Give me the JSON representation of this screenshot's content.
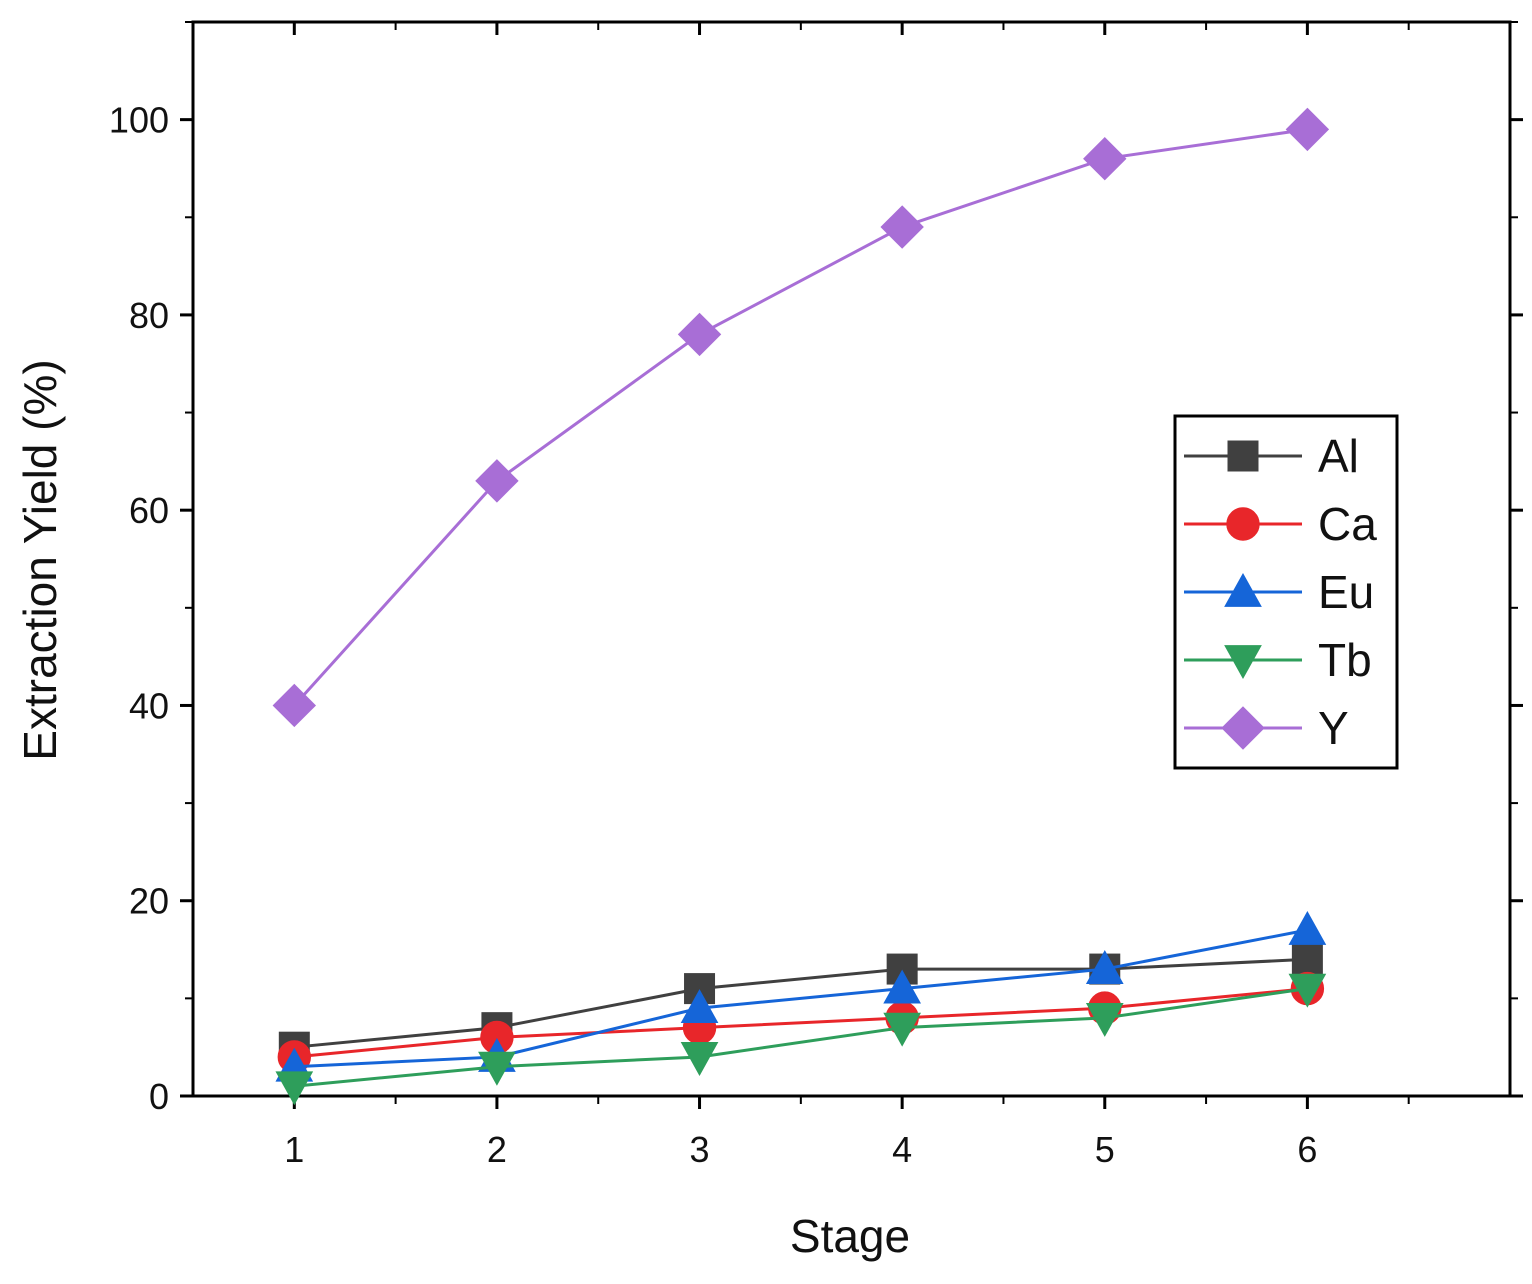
{
  "chart_data": {
    "type": "line",
    "title": "",
    "xlabel": "Stage",
    "ylabel": "Extraction Yield (%)",
    "x": [
      1,
      2,
      3,
      4,
      5,
      6
    ],
    "x_tick_labels": [
      "1",
      "2",
      "3",
      "4",
      "5",
      "6"
    ],
    "xlim": [
      0.5,
      7
    ],
    "ylim": [
      0,
      110
    ],
    "y_tick_values": [
      0,
      20,
      40,
      60,
      80,
      100
    ],
    "y_tick_labels": [
      "0",
      "20",
      "40",
      "60",
      "80",
      "100"
    ],
    "grid": false,
    "legend_position": "right-middle",
    "series": [
      {
        "name": "Al",
        "marker": "square",
        "color": "#404040",
        "values": [
          5,
          7,
          11,
          13,
          13,
          14
        ]
      },
      {
        "name": "Ca",
        "marker": "circle",
        "color": "#e8262a",
        "values": [
          4,
          6,
          7,
          8,
          9,
          11
        ]
      },
      {
        "name": "Eu",
        "marker": "triangle-up",
        "color": "#1565d8",
        "values": [
          3,
          4,
          9,
          11,
          13,
          17
        ]
      },
      {
        "name": "Tb",
        "marker": "triangle-down",
        "color": "#2e9e5b",
        "values": [
          1,
          3,
          4,
          7,
          8,
          11
        ]
      },
      {
        "name": "Y",
        "marker": "diamond",
        "color": "#a86ed6",
        "values": [
          40,
          63,
          78,
          89,
          96,
          99
        ]
      }
    ]
  }
}
